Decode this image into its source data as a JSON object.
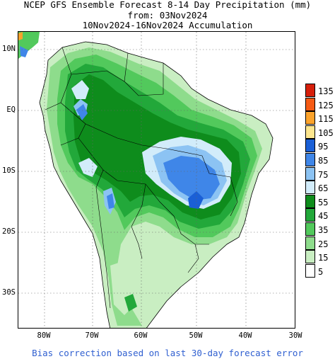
{
  "title": {
    "line1": "NCEP GFS Ensemble Forecast 8-14 Day Precipitation (mm)",
    "line2": "from: 03Nov2024",
    "line3": "10Nov2024-16Nov2024 Accumulation"
  },
  "lat_labels": [
    "10N",
    "EQ",
    "10S",
    "20S",
    "30S"
  ],
  "lon_labels": [
    "80W",
    "70W",
    "60W",
    "50W",
    "40W",
    "30W"
  ],
  "legend": {
    "levels": [
      {
        "label": "135",
        "color": "#d61f0a"
      },
      {
        "label": "125",
        "color": "#f55a14"
      },
      {
        "label": "115",
        "color": "#fca32c"
      },
      {
        "label": "105",
        "color": "#fde68e"
      },
      {
        "label": "95",
        "color": "#1a5fd6"
      },
      {
        "label": "85",
        "color": "#3f86e8"
      },
      {
        "label": "75",
        "color": "#8cc3f3"
      },
      {
        "label": "65",
        "color": "#d2ecfa"
      },
      {
        "label": "55",
        "color": "#0e8c1c"
      },
      {
        "label": "45",
        "color": "#22a83a"
      },
      {
        "label": "35",
        "color": "#52c95c"
      },
      {
        "label": "25",
        "color": "#8edc8c"
      },
      {
        "label": "15",
        "color": "#c9eec2"
      },
      {
        "label": "5",
        "color": "#ffffff"
      }
    ]
  },
  "footer": "Bias correction based on last 30-day forecast error"
}
